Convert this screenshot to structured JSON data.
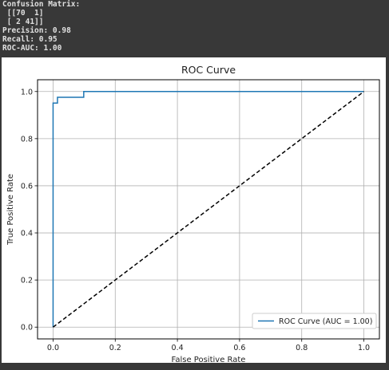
{
  "console": {
    "lines": [
      "Confusion Matrix:",
      " [[70  1]",
      " [ 2 41]]",
      "Precision: 0.98",
      "Recall: 0.95",
      "ROC-AUC: 1.00"
    ]
  },
  "chart_data": {
    "type": "line",
    "title": "ROC Curve",
    "xlabel": "False Positive Rate",
    "ylabel": "True Positive Rate",
    "xlim": [
      -0.05,
      1.05
    ],
    "ylim": [
      -0.05,
      1.05
    ],
    "xticks": [
      "0.0",
      "0.2",
      "0.4",
      "0.6",
      "0.8",
      "1.0"
    ],
    "yticks": [
      "0.0",
      "0.2",
      "0.4",
      "0.6",
      "0.8",
      "1.0"
    ],
    "grid": true,
    "legend_position": "lower-right",
    "series": [
      {
        "name": "ROC Curve (AUC = 1.00)",
        "color": "#1f77b4",
        "style": "solid",
        "x": [
          0.0,
          0.0,
          0.0,
          0.0141,
          0.0141,
          0.0986,
          0.0986,
          1.0
        ],
        "y": [
          0.0,
          0.0244,
          0.9512,
          0.9512,
          0.9756,
          0.9756,
          1.0,
          1.0
        ]
      },
      {
        "name": "",
        "color": "#000000",
        "style": "dashed",
        "x": [
          0.0,
          1.0
        ],
        "y": [
          0.0,
          1.0
        ]
      }
    ]
  }
}
